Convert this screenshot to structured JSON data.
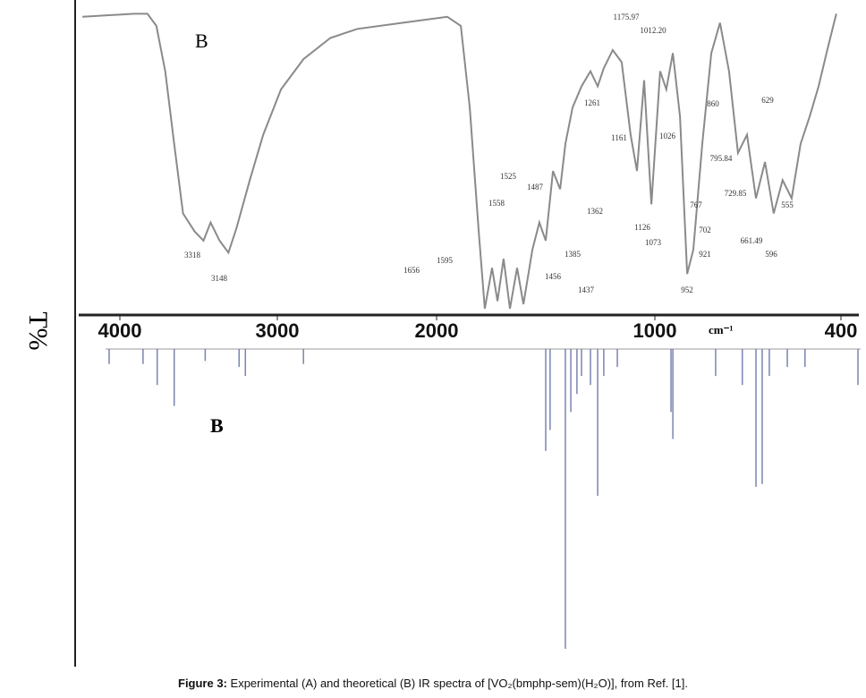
{
  "chart_data": [
    {
      "type": "line",
      "panel_label": "B",
      "ylabel": "T%",
      "color": "#8a8a8a",
      "xlim": [
        4260,
        340
      ],
      "ylim": [
        0,
        100
      ],
      "x": [
        4237,
        3910,
        3825,
        3768,
        3712,
        3655,
        3599,
        3525,
        3469,
        3424,
        3367,
        3311,
        3260,
        3175,
        3090,
        2977,
        2836,
        2667,
        2497,
        2215,
        1951,
        1889,
        1848,
        1807,
        1779,
        1746,
        1721,
        1693,
        1664,
        1631,
        1602,
        1561,
        1529,
        1500,
        1467,
        1434,
        1410,
        1377,
        1336,
        1295,
        1262,
        1234,
        1193,
        1152,
        1111,
        1082,
        1049,
        1016,
        983,
        963,
        942,
        919,
        896,
        876,
        847,
        818,
        790,
        761,
        732,
        703,
        674,
        645,
        617,
        588,
        559,
        530,
        501,
        472,
        444,
        415
      ],
      "values": [
        98,
        99,
        99,
        95,
        80,
        56,
        33,
        27,
        24,
        30,
        24,
        20,
        28,
        44,
        59,
        74,
        84,
        91,
        94,
        96,
        98,
        95,
        68,
        27,
        1.5,
        15,
        4,
        18,
        1.5,
        15,
        3,
        21,
        30,
        24,
        47,
        41,
        56,
        68,
        75,
        80,
        75,
        81,
        87,
        83,
        59,
        47,
        77,
        36,
        80,
        74,
        86,
        65,
        13,
        21,
        56,
        86,
        96,
        80,
        53,
        59,
        38,
        50,
        33,
        44,
        38,
        56,
        65,
        75,
        87,
        99
      ],
      "annotations": [
        "3318",
        "3148",
        "1656",
        "1595",
        "1558",
        "1525",
        "1487",
        "1456",
        "1437",
        "1385",
        "1362",
        "1261",
        "1175.97",
        "1161",
        "1126",
        "1073",
        "1012.20",
        "1026",
        "952",
        "921",
        "860",
        "795.84",
        "767",
        "729.85",
        "702",
        "661.49",
        "629",
        "596",
        "555"
      ]
    },
    {
      "type": "stick",
      "panel_label": "B",
      "xlabel": "cm⁻¹",
      "color": "#7a84b0",
      "xlim": [
        4260,
        340
      ],
      "ylim": [
        0,
        100
      ],
      "xticks": [
        4000,
        3000,
        2000,
        1000,
        400
      ],
      "x": [
        4068,
        3853,
        3763,
        3655,
        3458,
        3243,
        3203,
        2836,
        1500,
        1480,
        1410,
        1385,
        1357,
        1336,
        1295,
        1262,
        1234,
        1172,
        948,
        942,
        804,
        718,
        674,
        654,
        631,
        573,
        516,
        343
      ],
      "values": [
        5,
        5,
        12,
        19,
        4,
        6,
        9,
        5,
        34,
        27,
        100,
        21,
        15,
        9,
        12,
        49,
        9,
        6,
        21,
        30,
        9,
        12,
        46,
        45,
        9,
        6,
        6,
        12
      ]
    }
  ],
  "caption": {
    "label": "Figure 3:",
    "text": "Experimental (A) and theoretical (B) IR spectra of [VO₂(bmphp-sem)(H₂O)], from Ref. [1]."
  }
}
